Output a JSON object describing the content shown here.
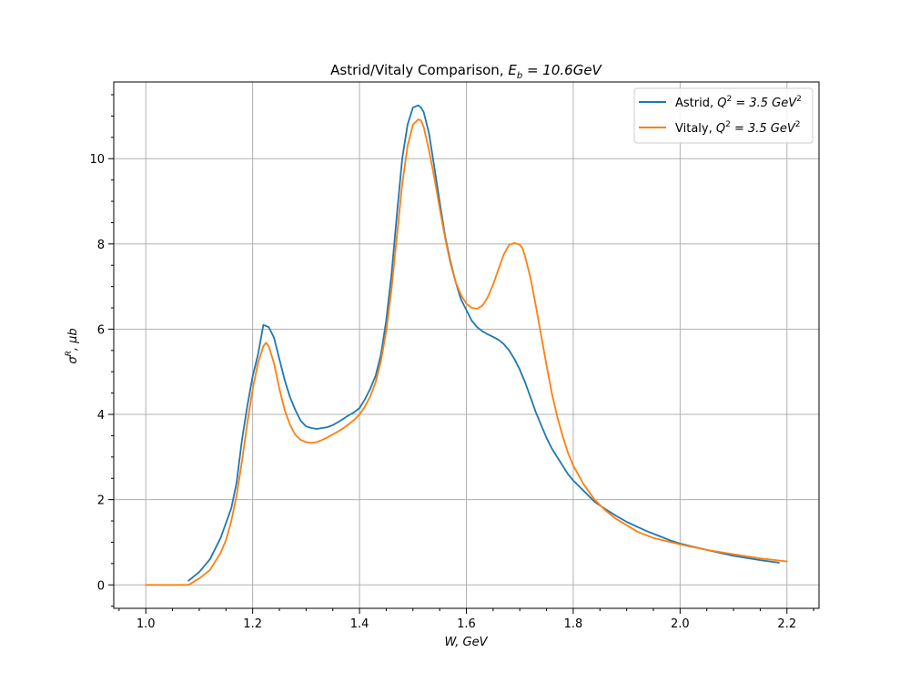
{
  "chart_data": {
    "type": "line",
    "title_main": "Astrid/Vitaly Comparison, ",
    "title_math_base": "E",
    "title_math_sub": "b",
    "title_math_rest": " = 10.6GeV",
    "xlabel": "W, GeV",
    "ylabel_base": "σ",
    "ylabel_sup": "R",
    "ylabel_rest": ", μb",
    "xlim": [
      0.94,
      2.26
    ],
    "ylim": [
      -0.55,
      11.8
    ],
    "x_ticks": [
      1.0,
      1.2,
      1.4,
      1.6,
      1.8,
      2.0,
      2.2
    ],
    "x_tick_labels": [
      "1.0",
      "1.2",
      "1.4",
      "1.6",
      "1.8",
      "2.0",
      "2.2"
    ],
    "y_ticks": [
      0,
      2,
      4,
      6,
      8,
      10
    ],
    "y_tick_labels": [
      "0",
      "2",
      "4",
      "6",
      "8",
      "10"
    ],
    "grid": true,
    "legend_position": "top-right",
    "series": [
      {
        "name_prefix": "Astrid, ",
        "name_math": "Q",
        "name_sup": "2",
        "name_rest": " = 3.5 GeV",
        "name_sup2": "2",
        "color": "#1f77b4",
        "x": [
          1.08,
          1.1,
          1.12,
          1.14,
          1.16,
          1.17,
          1.18,
          1.19,
          1.2,
          1.21,
          1.22,
          1.23,
          1.24,
          1.25,
          1.26,
          1.27,
          1.28,
          1.29,
          1.3,
          1.31,
          1.32,
          1.33,
          1.34,
          1.35,
          1.36,
          1.37,
          1.38,
          1.39,
          1.4,
          1.41,
          1.42,
          1.43,
          1.44,
          1.45,
          1.46,
          1.47,
          1.48,
          1.49,
          1.5,
          1.51,
          1.515,
          1.52,
          1.53,
          1.54,
          1.55,
          1.56,
          1.57,
          1.58,
          1.59,
          1.6,
          1.61,
          1.62,
          1.63,
          1.64,
          1.65,
          1.66,
          1.67,
          1.68,
          1.69,
          1.7,
          1.71,
          1.72,
          1.73,
          1.74,
          1.75,
          1.76,
          1.77,
          1.78,
          1.79,
          1.8,
          1.82,
          1.84,
          1.86,
          1.88,
          1.9,
          1.92,
          1.94,
          1.96,
          1.98,
          2.0,
          2.05,
          2.1,
          2.15,
          2.185
        ],
        "y": [
          0.1,
          0.3,
          0.6,
          1.1,
          1.8,
          2.4,
          3.4,
          4.2,
          4.9,
          5.4,
          6.1,
          6.05,
          5.8,
          5.3,
          4.8,
          4.4,
          4.1,
          3.85,
          3.72,
          3.68,
          3.66,
          3.68,
          3.7,
          3.75,
          3.82,
          3.9,
          3.98,
          4.05,
          4.15,
          4.35,
          4.6,
          4.9,
          5.4,
          6.2,
          7.3,
          8.7,
          10.0,
          10.8,
          11.2,
          11.25,
          11.2,
          11.1,
          10.6,
          9.8,
          9.0,
          8.2,
          7.6,
          7.1,
          6.7,
          6.45,
          6.2,
          6.05,
          5.95,
          5.88,
          5.82,
          5.75,
          5.65,
          5.5,
          5.3,
          5.05,
          4.75,
          4.4,
          4.05,
          3.75,
          3.45,
          3.2,
          3.0,
          2.8,
          2.6,
          2.45,
          2.2,
          1.95,
          1.78,
          1.62,
          1.48,
          1.36,
          1.25,
          1.15,
          1.05,
          0.97,
          0.82,
          0.68,
          0.58,
          0.52
        ]
      },
      {
        "name_prefix": "Vitaly, ",
        "name_math": "Q",
        "name_sup": "2",
        "name_rest": " = 3.5 GeV",
        "name_sup2": "2",
        "color": "#ff7f0e",
        "x": [
          1.0,
          1.04,
          1.08,
          1.1,
          1.12,
          1.14,
          1.15,
          1.16,
          1.17,
          1.18,
          1.19,
          1.2,
          1.21,
          1.22,
          1.225,
          1.23,
          1.24,
          1.25,
          1.26,
          1.27,
          1.28,
          1.29,
          1.3,
          1.31,
          1.32,
          1.33,
          1.34,
          1.35,
          1.36,
          1.37,
          1.38,
          1.39,
          1.4,
          1.41,
          1.42,
          1.43,
          1.44,
          1.45,
          1.46,
          1.47,
          1.48,
          1.49,
          1.5,
          1.51,
          1.515,
          1.52,
          1.53,
          1.54,
          1.55,
          1.56,
          1.57,
          1.58,
          1.59,
          1.6,
          1.61,
          1.62,
          1.63,
          1.64,
          1.65,
          1.66,
          1.67,
          1.68,
          1.69,
          1.7,
          1.705,
          1.71,
          1.72,
          1.73,
          1.74,
          1.75,
          1.76,
          1.77,
          1.78,
          1.79,
          1.8,
          1.82,
          1.84,
          1.86,
          1.88,
          1.9,
          1.92,
          1.95,
          2.0,
          2.05,
          2.1,
          2.15,
          2.2
        ],
        "y": [
          0.0,
          0.0,
          0.0,
          0.15,
          0.35,
          0.75,
          1.05,
          1.5,
          2.1,
          2.9,
          3.8,
          4.6,
          5.2,
          5.6,
          5.68,
          5.6,
          5.2,
          4.6,
          4.1,
          3.75,
          3.52,
          3.4,
          3.35,
          3.33,
          3.35,
          3.4,
          3.46,
          3.53,
          3.6,
          3.68,
          3.77,
          3.87,
          4.0,
          4.18,
          4.42,
          4.75,
          5.25,
          5.95,
          6.95,
          8.2,
          9.4,
          10.3,
          10.8,
          10.92,
          10.9,
          10.75,
          10.2,
          9.55,
          8.85,
          8.15,
          7.55,
          7.1,
          6.8,
          6.6,
          6.5,
          6.48,
          6.55,
          6.75,
          7.05,
          7.4,
          7.75,
          7.98,
          8.02,
          7.98,
          7.9,
          7.7,
          7.2,
          6.55,
          5.85,
          5.15,
          4.5,
          3.95,
          3.5,
          3.1,
          2.8,
          2.35,
          2.0,
          1.75,
          1.55,
          1.4,
          1.25,
          1.1,
          0.95,
          0.82,
          0.72,
          0.62,
          0.55
        ]
      }
    ]
  }
}
